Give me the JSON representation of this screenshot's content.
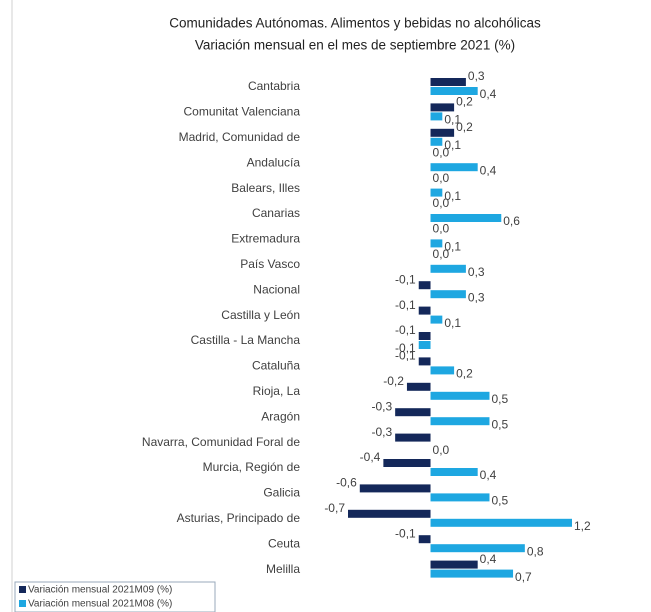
{
  "chart_data": {
    "type": "bar",
    "orientation": "horizontal",
    "title": "Comunidades Autónomas. Alimentos y bebidas no alcohólicas",
    "subtitle": "Variación mensual en el mes de septiembre 2021 (%)",
    "categories": [
      "Cantabria",
      "Comunitat Valenciana",
      "Madrid, Comunidad de",
      "Andalucía",
      "Balears, Illes",
      "Canarias",
      "Extremadura",
      "País Vasco",
      "Nacional",
      "Castilla y León",
      "Castilla - La Mancha",
      "Cataluña",
      "Rioja, La",
      "Aragón",
      "Navarra, Comunidad Foral de",
      "Murcia, Región de",
      "Galicia",
      "Asturias, Principado de",
      "Ceuta",
      "Melilla"
    ],
    "series": [
      {
        "name": "Variación mensual 2021M09 (%)",
        "color": "#14285a",
        "values": [
          0.3,
          0.2,
          0.2,
          0.0,
          0.0,
          0.0,
          0.0,
          0.0,
          -0.1,
          -0.1,
          -0.1,
          -0.1,
          -0.2,
          -0.3,
          -0.3,
          -0.4,
          -0.6,
          -0.7,
          -0.1,
          0.4
        ],
        "value_labels": [
          "0,3",
          "0,2",
          "0,2",
          "0,0",
          "0,0",
          "0,0",
          "0,0",
          "0,0",
          "-0,1",
          "-0,1",
          "-0,1",
          "-0,1",
          "-0,2",
          "-0,3",
          "-0,3",
          "-0,4",
          "-0,6",
          "-0,7",
          "-0,1",
          "0,4"
        ]
      },
      {
        "name": "Variación mensual 2021M08 (%)",
        "color": "#1ea7e1",
        "values": [
          0.4,
          0.1,
          0.1,
          0.4,
          0.1,
          0.6,
          0.1,
          0.3,
          0.3,
          0.1,
          -0.1,
          0.2,
          0.5,
          0.5,
          0.0,
          0.4,
          0.5,
          1.2,
          0.8,
          0.7
        ],
        "value_labels": [
          "0,4",
          "0,1",
          "0,1",
          "0,4",
          "0,1",
          "0,6",
          "0,1",
          "0,3",
          "0,3",
          "0,1",
          "-0,1",
          "0,2",
          "0,5",
          "0,5",
          "0,0",
          "0,4",
          "0,5",
          "1,2",
          "0,8",
          "0,7"
        ]
      }
    ]
  }
}
